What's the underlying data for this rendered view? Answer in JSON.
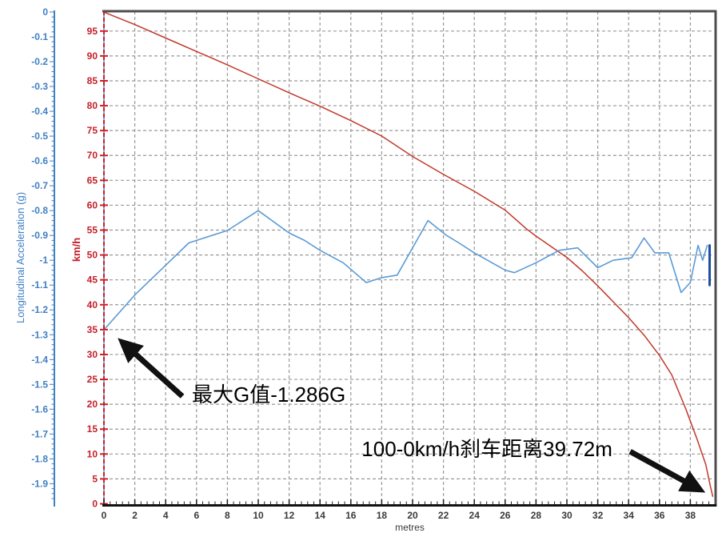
{
  "page": {
    "background": "#ffffff"
  },
  "chart_data": {
    "type": "line",
    "title": "",
    "x_axis": {
      "label": "metres",
      "tick_labels": [
        "0",
        "2",
        "4",
        "6",
        "8",
        "10",
        "12",
        "14",
        "16",
        "18",
        "20",
        "22",
        "24",
        "26",
        "28",
        "30",
        "32",
        "34",
        "36",
        "38"
      ],
      "range_m": [
        0,
        39.55
      ]
    },
    "y_axis_acceleration": {
      "label": "Longitudinal Acceleration (g)",
      "color": "#3f7fc4",
      "tick_labels": [
        "0",
        "-0.1",
        "-0.2",
        "-0.3",
        "-0.4",
        "-0.5",
        "-0.6",
        "-0.7",
        "-0.8",
        "-0.9",
        "-1",
        "-1.1",
        "-1.2",
        "-1.3",
        "-1.4",
        "-1.5",
        "-1.6",
        "-1.7",
        "-1.8",
        "-1.9"
      ],
      "range_g": [
        0,
        -1.98
      ]
    },
    "y_axis_speed": {
      "label": "km/h",
      "color": "#c42028",
      "tick_labels": [
        "0",
        "5",
        "10",
        "15",
        "20",
        "25",
        "30",
        "35",
        "40",
        "45",
        "50",
        "55",
        "60",
        "65",
        "70",
        "75",
        "80",
        "85",
        "90",
        "95"
      ],
      "range_kmh": [
        0,
        99.2
      ]
    },
    "grid": {
      "shown": true,
      "color": "#999999",
      "x_step_m": 2,
      "y_step_kmh": 5
    },
    "legend": {
      "shown": false
    },
    "series": [
      {
        "name": "speed",
        "axis": "kmh",
        "color": "#c0392b",
        "width": 1.5,
        "points": [
          [
            0,
            98.8
          ],
          [
            2,
            96.3
          ],
          [
            4,
            93.6
          ],
          [
            6,
            90.9
          ],
          [
            8,
            88.2
          ],
          [
            10,
            85.4
          ],
          [
            12,
            82.6
          ],
          [
            14,
            79.9
          ],
          [
            16,
            77.0
          ],
          [
            18,
            73.9
          ],
          [
            20,
            69.8
          ],
          [
            22,
            66.2
          ],
          [
            24,
            62.8
          ],
          [
            26,
            59.0
          ],
          [
            27.4,
            55.2
          ],
          [
            28,
            53.8
          ],
          [
            30,
            49.5
          ],
          [
            31,
            46.8
          ],
          [
            32,
            43.8
          ],
          [
            33,
            40.6
          ],
          [
            34,
            37.4
          ],
          [
            35,
            33.9
          ],
          [
            36,
            29.8
          ],
          [
            36.8,
            25.9
          ],
          [
            37.7,
            19.1
          ],
          [
            38.4,
            13.3
          ],
          [
            39.0,
            7.9
          ],
          [
            39.3,
            3.5
          ],
          [
            39.45,
            1.5
          ]
        ]
      },
      {
        "name": "longitudinal-acceleration",
        "axis": "g",
        "color": "#5b9bd5",
        "width": 1.6,
        "points": [
          [
            0,
            0
          ],
          [
            0,
            -1.98
          ],
          [
            0,
            -1.28
          ],
          [
            2,
            -1.14
          ],
          [
            4,
            -1.02
          ],
          [
            5.5,
            -0.93
          ],
          [
            8,
            -0.88
          ],
          [
            10,
            -0.8
          ],
          [
            12,
            -0.89
          ],
          [
            13,
            -0.92
          ],
          [
            14,
            -0.96
          ],
          [
            15.5,
            -1.01
          ],
          [
            17,
            -1.09
          ],
          [
            18,
            -1.07
          ],
          [
            19,
            -1.06
          ],
          [
            21,
            -0.84
          ],
          [
            22.2,
            -0.9
          ],
          [
            23,
            -0.93
          ],
          [
            24,
            -0.97
          ],
          [
            26,
            -1.04
          ],
          [
            26.6,
            -1.05
          ],
          [
            28,
            -1.01
          ],
          [
            29.5,
            -0.96
          ],
          [
            30.7,
            -0.95
          ],
          [
            32,
            -1.03
          ],
          [
            33,
            -1.0
          ],
          [
            34.2,
            -0.99
          ],
          [
            35,
            -0.91
          ],
          [
            35.7,
            -0.97
          ],
          [
            36.6,
            -0.97
          ],
          [
            37.4,
            -1.13
          ],
          [
            38,
            -1.09
          ],
          [
            38.5,
            -0.94
          ],
          [
            38.8,
            -1.0
          ],
          [
            39.1,
            -0.94
          ]
        ]
      },
      {
        "name": "trace-end-marker",
        "axis": "g",
        "color": "#1f4fa0",
        "width": 3,
        "points": [
          [
            39.25,
            -0.94
          ],
          [
            39.25,
            -1.1
          ]
        ]
      }
    ],
    "annotations": [
      {
        "id": "max-g",
        "text": "最大G值-1.286G",
        "text_at_m_kmh": [
          5.7,
          24.4
        ],
        "arrow_tail_m_kmh": [
          5.08,
          21.6
        ],
        "arrow_head_m_kmh": [
          1.97,
          30.3
        ]
      },
      {
        "id": "braking-distance",
        "text": "100-0km/h刹车距离39.72m",
        "text_at_m_kmh": [
          16.7,
          13.4
        ],
        "arrow_tail_m_kmh": [
          34.1,
          10.5
        ],
        "arrow_head_m_kmh": [
          37.7,
          4.4
        ]
      }
    ]
  }
}
